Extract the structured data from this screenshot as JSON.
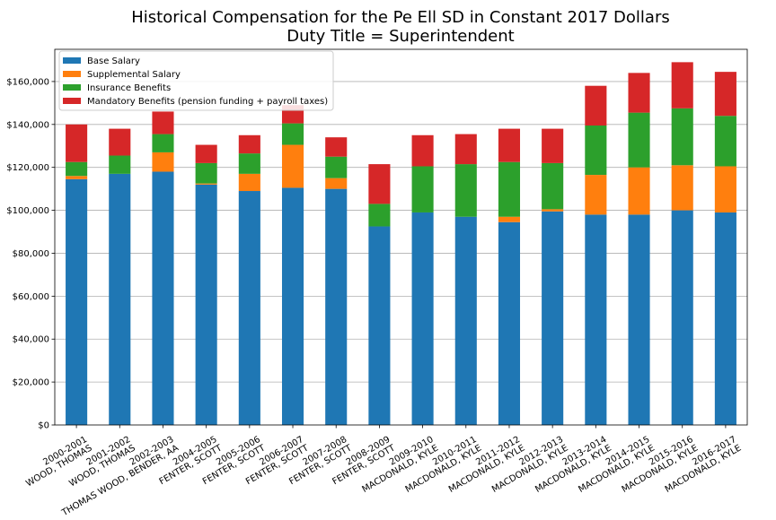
{
  "chart_data": {
    "type": "bar",
    "stacked": true,
    "title": "Historical Compensation for the Pe Ell SD in Constant 2017 Dollars",
    "subtitle": "Duty Title = Superintendent",
    "xlabel": "",
    "ylabel": "",
    "ylim": [
      0,
      175000
    ],
    "yticks": [
      0,
      20000,
      40000,
      60000,
      80000,
      100000,
      120000,
      140000,
      160000
    ],
    "ytick_labels": [
      "$0",
      "$20,000",
      "$40,000",
      "$60,000",
      "$80,000",
      "$100,000",
      "$120,000",
      "$140,000",
      "$160,000"
    ],
    "grid": "y",
    "legend_position": "top-left",
    "categories": [
      "2000-2001\nWOOD, THOMAS",
      "2001-2002\nWOOD, THOMAS",
      "2002-2003\nTHOMAS WOOD, BENDER, AA",
      "2004-2005\nFENTER, SCOTT",
      "2005-2006\nFENTER, SCOTT",
      "2006-2007\nFENTER, SCOTT",
      "2007-2008\nFENTER, SCOTT",
      "2008-2009\nFENTER, SCOTT",
      "2009-2010\nMACDONALD, KYLE",
      "2010-2011\nMACDONALD, KYLE",
      "2011-2012\nMACDONALD, KYLE",
      "2012-2013\nMACDONALD, KYLE",
      "2013-2014\nMACDONALD, KYLE",
      "2014-2015\nMACDONALD, KYLE",
      "2015-2016\nMACDONALD, KYLE",
      "2016-2017\nMACDONALD, KYLE"
    ],
    "series": [
      {
        "name": "Base Salary",
        "color": "#1f77b4",
        "values": [
          114500,
          117000,
          118000,
          112000,
          109000,
          110500,
          110000,
          92500,
          99000,
          97000,
          94500,
          99500,
          98000,
          98000,
          100000,
          99000
        ]
      },
      {
        "name": "Supplemental Salary",
        "color": "#ff7f0e",
        "values": [
          1500,
          0,
          9000,
          500,
          8000,
          20000,
          5000,
          0,
          0,
          0,
          2500,
          1000,
          18500,
          22000,
          21000,
          21500
        ]
      },
      {
        "name": "Insurance Benefits",
        "color": "#2ca02c",
        "values": [
          6500,
          8500,
          8500,
          9500,
          9500,
          10000,
          10000,
          10500,
          21500,
          24500,
          25500,
          21500,
          23000,
          25500,
          26500,
          23500
        ]
      },
      {
        "name": "Mandatory Benefits (pension funding + payroll taxes)",
        "color": "#d62728",
        "values": [
          17500,
          12500,
          10500,
          8500,
          8500,
          8500,
          9000,
          18500,
          14500,
          14000,
          15500,
          16000,
          18500,
          18500,
          21500,
          20500
        ]
      }
    ]
  }
}
